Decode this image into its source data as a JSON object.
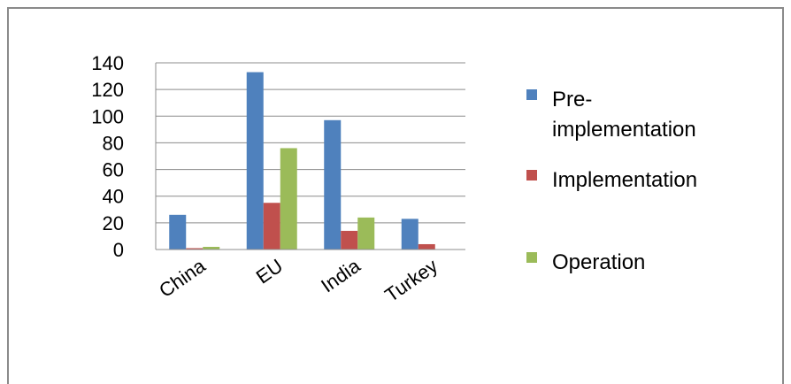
{
  "chart_data": {
    "type": "bar",
    "categories": [
      "China",
      "EU",
      "India",
      "Turkey"
    ],
    "series": [
      {
        "name": "Pre-implementation",
        "legend_lines": [
          "Pre-",
          "implementation"
        ],
        "color": "#4F81BD",
        "values": [
          26,
          133,
          97,
          23
        ]
      },
      {
        "name": "Implementation",
        "legend_lines": [
          "Implementation"
        ],
        "color": "#C0504D",
        "values": [
          1,
          35,
          14,
          4
        ]
      },
      {
        "name": "Operation",
        "legend_lines": [
          "Operation"
        ],
        "color": "#9BBB59",
        "values": [
          2,
          76,
          24,
          0
        ]
      }
    ],
    "ylim": [
      0,
      140
    ],
    "yticks": [
      "0",
      "20",
      "40",
      "60",
      "80",
      "100",
      "120",
      "140"
    ],
    "grid": true,
    "legend_position": "right"
  }
}
